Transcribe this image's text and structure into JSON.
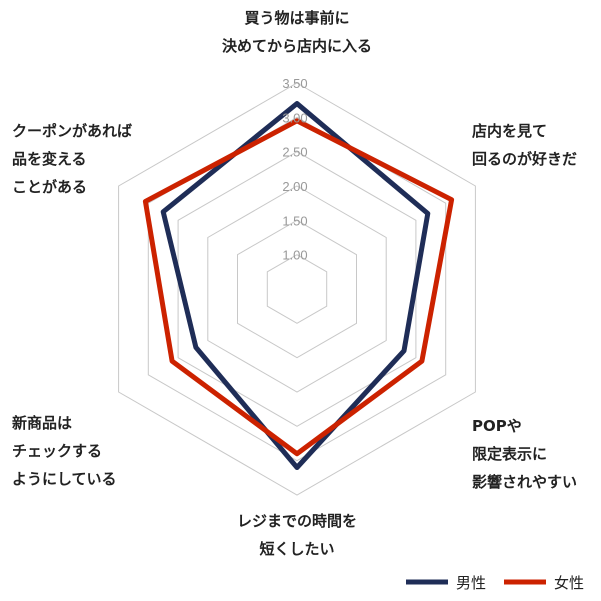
{
  "chart_data": {
    "type": "radar",
    "axes": [
      [
        "買う物は事前に",
        "決めてから店内に入る"
      ],
      [
        "店内を見て",
        "回るのが好きだ"
      ],
      [
        "POPや",
        "限定表示に",
        "影響されやすい"
      ],
      [
        "レジまでの時間を",
        "短くしたい"
      ],
      [
        "新商品は",
        "チェックする",
        "ようにしている"
      ],
      [
        "クーポンがあれば",
        "品を変える",
        "ことがある"
      ]
    ],
    "rlim": [
      0.5,
      3.5
    ],
    "ticks": [
      "1.00",
      "1.50",
      "2.00",
      "2.50",
      "3.00",
      "3.50"
    ],
    "tick_values": [
      1.0,
      1.5,
      2.0,
      2.5,
      3.0,
      3.5
    ],
    "grid": true,
    "legend_position": "bottom-right",
    "series": [
      {
        "name": "男性",
        "color": "#1f2d57",
        "values": [
          3.2,
          2.7,
          2.3,
          3.1,
          2.2,
          2.75
        ]
      },
      {
        "name": "女性",
        "color": "#cc2200",
        "values": [
          2.95,
          3.1,
          2.6,
          2.9,
          2.6,
          3.05
        ]
      }
    ]
  }
}
